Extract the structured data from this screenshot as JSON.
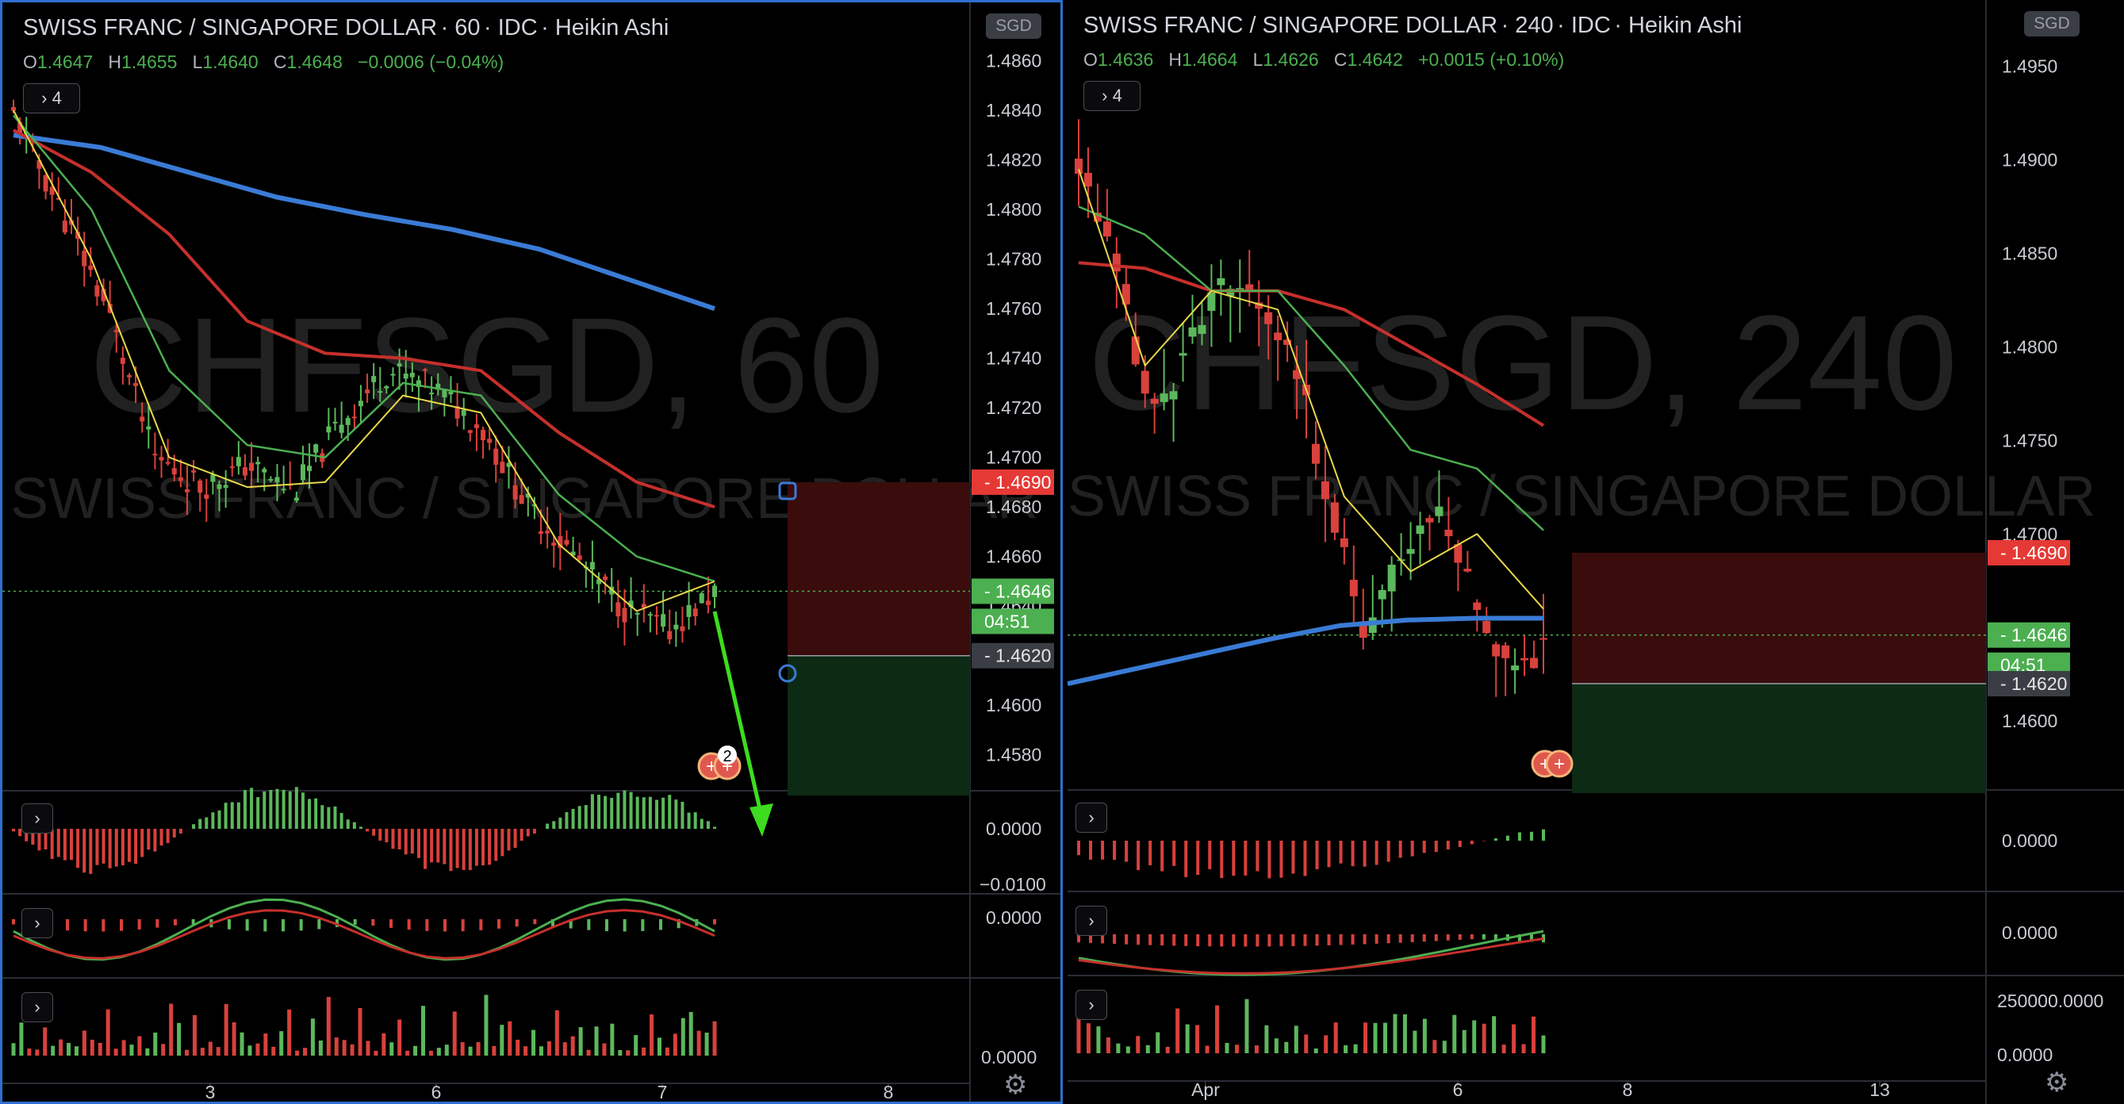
{
  "left": {
    "header": {
      "title": "SWISS FRANC / SINGAPORE DOLLAR",
      "interval": "60",
      "source": "IDC",
      "style": "Heikin Ashi"
    },
    "ohlc": {
      "o_label": "O",
      "o": "1.4647",
      "h_label": "H",
      "h": "1.4655",
      "l_label": "L",
      "l": "1.4640",
      "c_label": "C",
      "c": "1.4648",
      "change": "−0.0006 (−0.04%)"
    },
    "currency_badge": "SGD",
    "indicator_count": "4",
    "watermark": {
      "symbol": "CHFSGD, 60",
      "name": "SWISS FRANC / SINGAPORE DOLLAR"
    },
    "price_ticks": [
      "1.4860",
      "1.4840",
      "1.4820",
      "1.4800",
      "1.4780",
      "1.4760",
      "1.4740",
      "1.4720",
      "1.4700",
      "1.4680",
      "1.4660",
      "1.4640",
      "1.4600",
      "1.4580"
    ],
    "price_labels": {
      "stop": "1.4690",
      "last": "1.4646",
      "countdown": "04:51",
      "entry": "1.4620"
    },
    "osc1_ticks": [
      "0.0000",
      "−0.0100"
    ],
    "osc2_ticks": [
      "0.0000"
    ],
    "vol_ticks": [
      "0.0000"
    ],
    "x_ticks": [
      "3",
      "6",
      "7",
      "8"
    ],
    "event_badge": "2"
  },
  "right": {
    "header": {
      "title": "SWISS FRANC / SINGAPORE DOLLAR",
      "interval": "240",
      "source": "IDC",
      "style": "Heikin Ashi"
    },
    "ohlc": {
      "o_label": "O",
      "o": "1.4636",
      "h_label": "H",
      "h": "1.4664",
      "l_label": "L",
      "l": "1.4626",
      "c_label": "C",
      "c": "1.4642",
      "change": "+0.0015 (+0.10%)"
    },
    "currency_badge": "SGD",
    "indicator_count": "4",
    "watermark": {
      "symbol": "CHFSGD, 240",
      "name": "SWISS FRANC / SINGAPORE DOLLAR"
    },
    "price_ticks": [
      "1.4950",
      "1.4900",
      "1.4850",
      "1.4800",
      "1.4750",
      "1.4700",
      "1.4600"
    ],
    "price_labels": {
      "stop": "1.4690",
      "last": "1.4646",
      "countdown": "04:51",
      "entry": "1.4620"
    },
    "osc1_ticks": [
      "0.0000"
    ],
    "osc2_ticks": [
      "0.0000"
    ],
    "vol_ticks": [
      "250000.0000",
      "0.0000"
    ],
    "x_ticks": [
      "Apr",
      "6",
      "8",
      "13"
    ]
  },
  "colors": {
    "up": "#5cb85c",
    "down": "#d9413c",
    "ema_fast": "#e8d84a",
    "ema_mid": "#4caf50",
    "ema_slow": "#c6302c",
    "ema_long": "#3a7bd5",
    "stop_zone": "#3a0c0c",
    "target_zone": "#0d2a14",
    "arrow": "#3ddc1f"
  },
  "chart_data": [
    {
      "type": "candlestick",
      "symbol": "CHFSGD",
      "interval": "60",
      "chart_style": "Heikin Ashi",
      "price_range": [
        1.457,
        1.4865
      ],
      "x_ticks": [
        "3",
        "6",
        "7",
        "8"
      ],
      "last_price": 1.4646,
      "position": {
        "entry": 1.462,
        "stop": 1.469,
        "side": "short"
      },
      "ohlc": {
        "open": 1.4647,
        "high": 1.4655,
        "low": 1.464,
        "close": 1.4648
      },
      "ema_long_path": [
        1.483,
        1.4825,
        1.4815,
        1.4805,
        1.4798,
        1.4792,
        1.4784,
        1.4772,
        1.476
      ],
      "ema_slow_path": [
        1.4832,
        1.4815,
        1.479,
        1.4755,
        1.4742,
        1.474,
        1.4735,
        1.471,
        1.469,
        1.468
      ],
      "ema_mid_path": [
        1.4838,
        1.48,
        1.4735,
        1.4705,
        1.47,
        1.473,
        1.4725,
        1.4685,
        1.466,
        1.465
      ],
      "ema_fast_path": [
        1.484,
        1.478,
        1.47,
        1.4688,
        1.469,
        1.4725,
        1.4718,
        1.4665,
        1.4638,
        1.465
      ],
      "candle_close_path": [
        1.4838,
        1.48,
        1.476,
        1.47,
        1.4688,
        1.4697,
        1.4686,
        1.4715,
        1.4735,
        1.4728,
        1.4712,
        1.468,
        1.466,
        1.464,
        1.463,
        1.4646
      ]
    },
    {
      "type": "candlestick",
      "symbol": "CHFSGD",
      "interval": "240",
      "chart_style": "Heikin Ashi",
      "price_range": [
        1.457,
        1.496
      ],
      "x_ticks": [
        "Apr",
        "6",
        "8",
        "13"
      ],
      "last_price": 1.4646,
      "position": {
        "entry": 1.462,
        "stop": 1.469,
        "side": "short"
      },
      "ohlc": {
        "open": 1.4636,
        "high": 1.4664,
        "low": 1.4626,
        "close": 1.4642
      },
      "ema_long_path": [
        1.462,
        1.4628,
        1.4636,
        1.4644,
        1.4651,
        1.4654,
        1.4655,
        1.4655
      ],
      "ema_slow_path": [
        1.4845,
        1.4842,
        1.483,
        1.483,
        1.482,
        1.48,
        1.478,
        1.4758
      ],
      "ema_mid_path": [
        1.4875,
        1.486,
        1.483,
        1.483,
        1.479,
        1.4745,
        1.4735,
        1.4702
      ],
      "ema_fast_path": [
        1.4895,
        1.479,
        1.483,
        1.482,
        1.472,
        1.468,
        1.47,
        1.466
      ],
      "candle_close_path": [
        1.49,
        1.484,
        1.476,
        1.48,
        1.483,
        1.483,
        1.479,
        1.472,
        1.464,
        1.469,
        1.4715,
        1.467,
        1.463,
        1.464
      ]
    }
  ]
}
